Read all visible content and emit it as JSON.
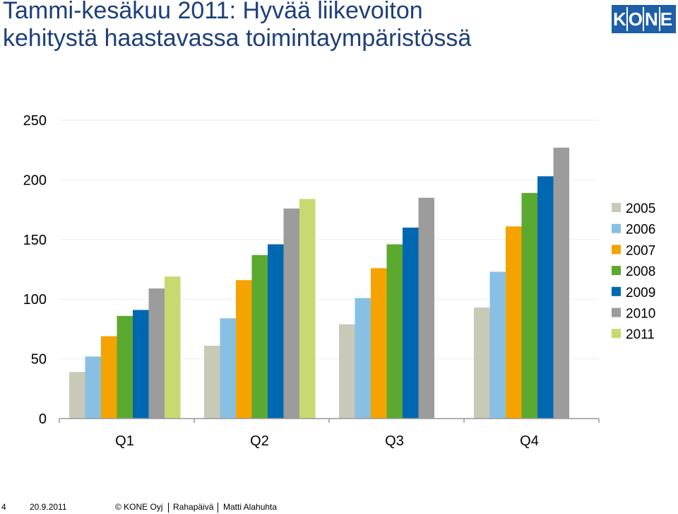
{
  "header": {
    "title_line1": "Tammi-kesäkuu 2011: Hyvää liikevoiton",
    "title_line2": "kehitystä haastavassa toimintaympäristössä",
    "logo_text": "KONE"
  },
  "colors": {
    "title": "#1d3f7a",
    "logo": "#1e5fa8",
    "series": [
      "#c9c9b8",
      "#88c0e4",
      "#f4a300",
      "#5ba92f",
      "#0068b1",
      "#9c9c9c",
      "#c8d970"
    ]
  },
  "chart_data": {
    "type": "bar",
    "categories": [
      "Q1",
      "Q2",
      "Q3",
      "Q4"
    ],
    "series": [
      {
        "name": "2005",
        "values": [
          39,
          61,
          79,
          93
        ]
      },
      {
        "name": "2006",
        "values": [
          52,
          84,
          101,
          123
        ]
      },
      {
        "name": "2007",
        "values": [
          69,
          116,
          126,
          161
        ]
      },
      {
        "name": "2008",
        "values": [
          86,
          137,
          146,
          189
        ]
      },
      {
        "name": "2009",
        "values": [
          91,
          146,
          160,
          203
        ]
      },
      {
        "name": "2010",
        "values": [
          109,
          176,
          185,
          227
        ]
      },
      {
        "name": "2011",
        "values": [
          119,
          184,
          null,
          null
        ]
      }
    ],
    "yticks": [
      0,
      50,
      100,
      150,
      200,
      250
    ],
    "ylim": [
      0,
      250
    ],
    "title": "",
    "xlabel": "",
    "ylabel": "",
    "grid": true,
    "legend_position": "right"
  },
  "footer": {
    "page_number": "4",
    "date": "20.9.2011",
    "copyright": "© KONE Oyj",
    "event": "Rahapäivä",
    "presenter": "Matti Alahuhta"
  }
}
